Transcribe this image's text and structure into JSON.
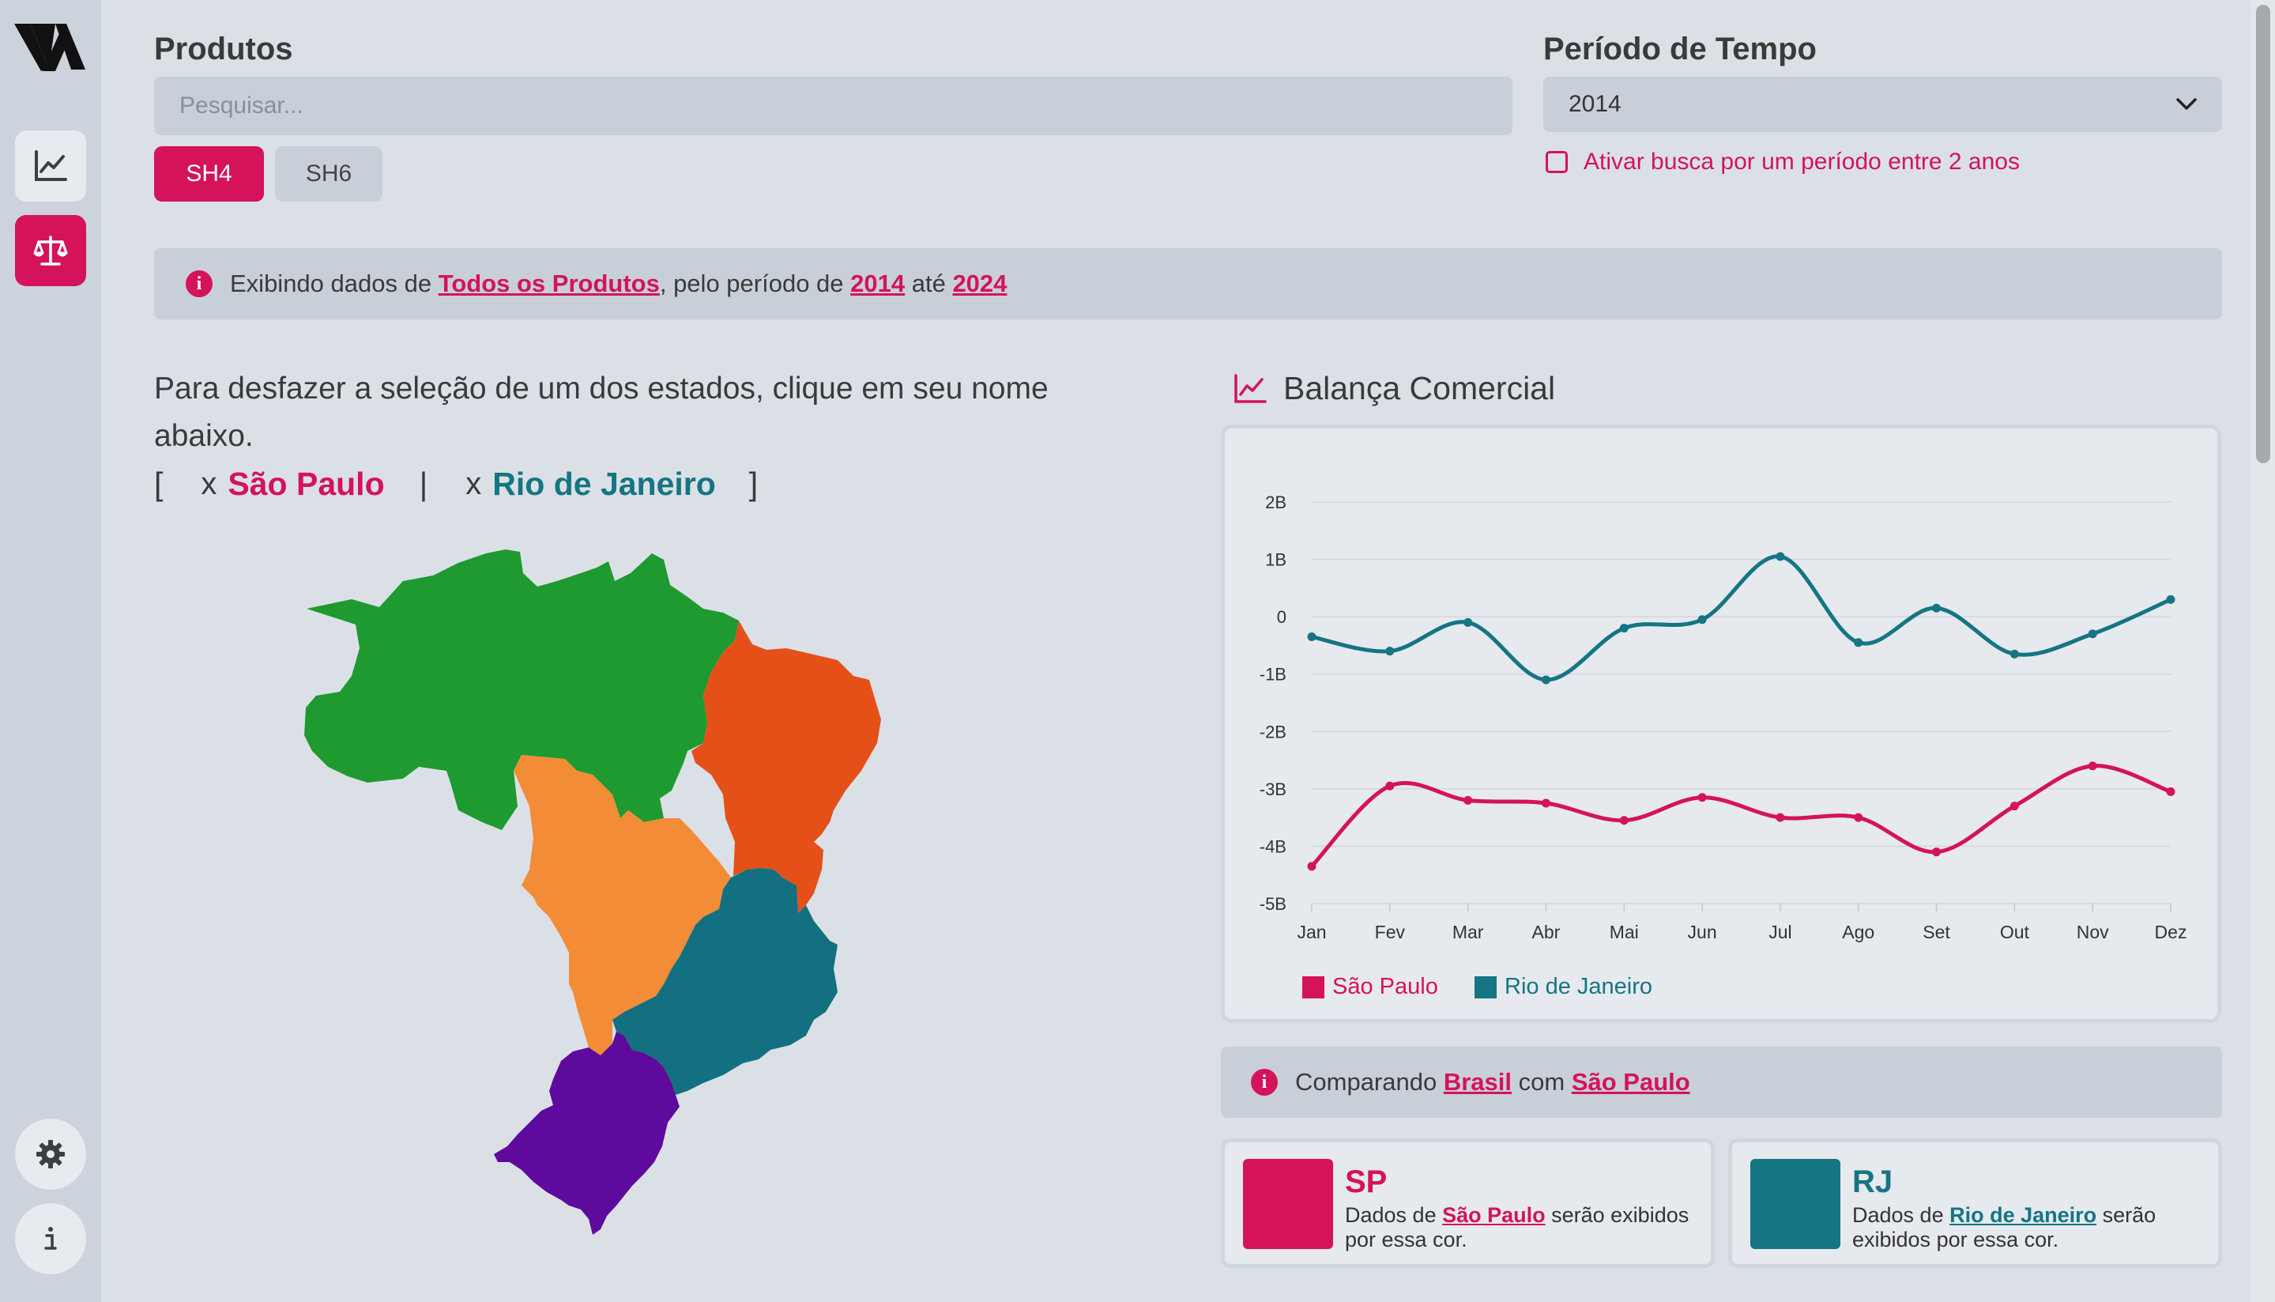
{
  "sidebar": {
    "logo": "logo-mark",
    "items": [
      {
        "name": "line-chart-icon",
        "active": false
      },
      {
        "name": "scale-icon",
        "active": true
      }
    ],
    "bottom": [
      {
        "name": "settings-icon"
      },
      {
        "name": "info-icon"
      }
    ]
  },
  "products": {
    "title": "Produtos",
    "search_placeholder": "Pesquisar...",
    "tabs": [
      {
        "label": "SH4",
        "active": true
      },
      {
        "label": "SH6",
        "active": false
      }
    ]
  },
  "period": {
    "title": "Período de Tempo",
    "selected": "2014",
    "range_toggle_label": "Ativar busca por um período entre 2 anos",
    "range_toggle_checked": false
  },
  "info_banner": {
    "prefix": "Exibindo dados de ",
    "products": "Todos os Produtos",
    "middle": ", pelo período de ",
    "start_year": "2014",
    "between": " até ",
    "end_year": "2024"
  },
  "selection": {
    "instruction": "Para desfazer a seleção de um dos estados, clique em seu nome abaixo.",
    "open_bracket": "[",
    "close_bracket": "]",
    "remove_symbol": "x",
    "separator": "|",
    "states": [
      "São Paulo",
      "Rio de Janeiro"
    ]
  },
  "map": {
    "regions": [
      {
        "name": "Norte",
        "color": "#1e9a30"
      },
      {
        "name": "Nordeste",
        "color": "#e55019"
      },
      {
        "name": "Centro-Oeste",
        "color": "#f28c36"
      },
      {
        "name": "Sudeste",
        "color": "#127080"
      },
      {
        "name": "Sul",
        "color": "#5e0a9d"
      }
    ]
  },
  "chart_panel": {
    "title": "Balança Comercial",
    "icon": "line-chart-icon"
  },
  "chart_data": {
    "type": "line",
    "title": "Balança Comercial",
    "categories": [
      "Jan",
      "Fev",
      "Mar",
      "Abr",
      "Mai",
      "Jun",
      "Jul",
      "Ago",
      "Set",
      "Out",
      "Nov",
      "Dez"
    ],
    "y_ticks": [
      "2B",
      "1B",
      "0",
      "-1B",
      "-2B",
      "-3B",
      "-4B",
      "-5B"
    ],
    "ylim": [
      -5,
      2
    ],
    "y_unit": "B",
    "grid": true,
    "legend_position": "bottom-left",
    "series": [
      {
        "name": "São Paulo",
        "color": "#d4135a",
        "values": [
          -4.35,
          -2.95,
          -3.2,
          -3.25,
          -3.55,
          -3.15,
          -3.5,
          -3.5,
          -4.1,
          -3.3,
          -2.6,
          -3.05
        ]
      },
      {
        "name": "Rio de Janeiro",
        "color": "#157583",
        "values": [
          -0.35,
          -0.6,
          -0.1,
          -1.1,
          -0.2,
          -0.05,
          1.05,
          -0.45,
          0.15,
          -0.65,
          -0.3,
          0.3
        ]
      }
    ]
  },
  "compare_banner": {
    "prefix": "Comparando ",
    "base": "Brasil",
    "middle": " com ",
    "target": "São Paulo"
  },
  "color_cards": [
    {
      "abbr": "SP",
      "prefix": "Dados de ",
      "state": "São Paulo",
      "suffix": " serão exibidos por essa cor.",
      "color": "#d4135a"
    },
    {
      "abbr": "RJ",
      "prefix": "Dados de ",
      "state": "Rio de Janeiro",
      "suffix": " serão exibidos por essa cor.",
      "color": "#157583"
    }
  ]
}
